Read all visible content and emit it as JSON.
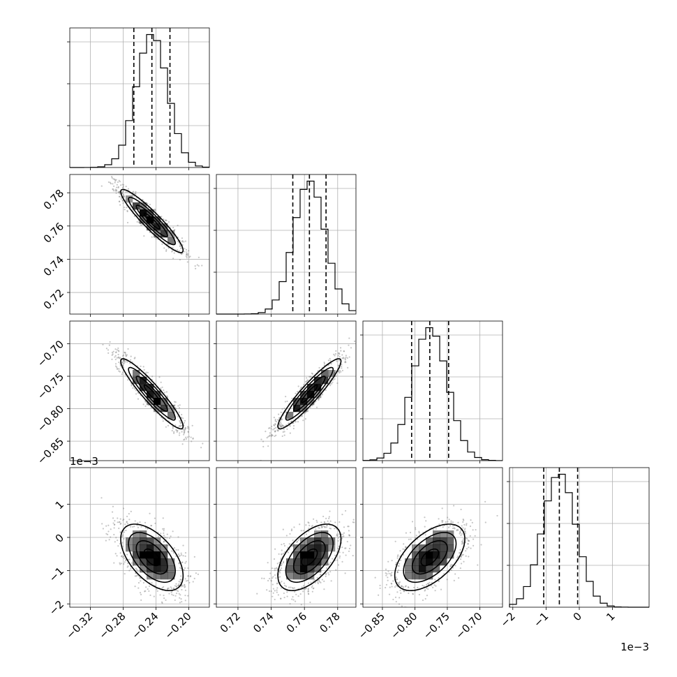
{
  "chart_data": {
    "type": "corner",
    "parameters": [
      {
        "lim": [
          -0.345,
          -0.175
        ],
        "ticks": [
          -0.32,
          -0.28,
          -0.24,
          -0.2
        ],
        "tick_labels": [
          "−0.32",
          "−0.28",
          "−0.24",
          "−0.20"
        ],
        "offset_label": "",
        "median": -0.245,
        "q16": -0.267,
        "q84": -0.223,
        "sd": 0.019
      },
      {
        "lim": [
          0.707,
          0.791
        ],
        "ticks": [
          0.72,
          0.74,
          0.76,
          0.78
        ],
        "tick_labels": [
          "0.72",
          "0.74",
          "0.76",
          "0.78"
        ],
        "offset_label": "",
        "median": 0.763,
        "q16": 0.753,
        "q84": 0.773,
        "sd": 0.0095
      },
      {
        "lim": [
          -0.88,
          -0.665
        ],
        "ticks": [
          -0.85,
          -0.8,
          -0.75,
          -0.7
        ],
        "tick_labels": [
          "−0.85",
          "−0.80",
          "−0.75",
          "−0.70"
        ],
        "offset_label": "",
        "median": -0.777,
        "q16": -0.805,
        "q84": -0.748,
        "sd": 0.027
      },
      {
        "lim": [
          -2.1,
          2.1
        ],
        "ticks": [
          -2,
          -1,
          0,
          1
        ],
        "tick_labels": [
          "−2",
          "−1",
          "0",
          "1"
        ],
        "offset_label": "1e−3",
        "median": -0.6,
        "q16": -1.07,
        "q84": -0.05,
        "sd": 0.5
      }
    ],
    "correlations": [
      {
        "pair": [
          1,
          0
        ],
        "rho": -0.93
      },
      {
        "pair": [
          2,
          0
        ],
        "rho": -0.93
      },
      {
        "pair": [
          2,
          1
        ],
        "rho": 0.93
      },
      {
        "pair": [
          3,
          0
        ],
        "rho": -0.55
      },
      {
        "pair": [
          3,
          1
        ],
        "rho": 0.55
      },
      {
        "pair": [
          3,
          2
        ],
        "rho": 0.55
      }
    ],
    "histogram_bins": 20,
    "quantile_lines": [
      0.16,
      0.5,
      0.84
    ],
    "grid": true,
    "colors": {
      "line": "#000000",
      "grid": "#b0b0b0",
      "points": "#808080",
      "density": "#000000"
    }
  }
}
